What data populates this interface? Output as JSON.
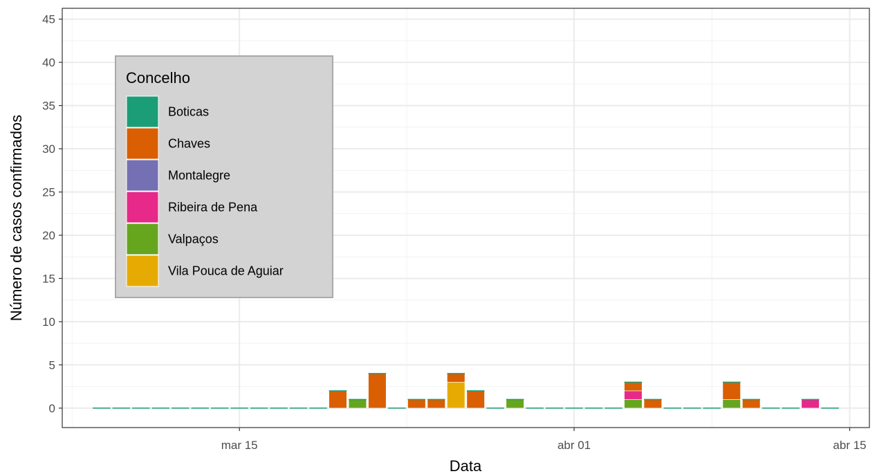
{
  "chart_data": {
    "type": "bar",
    "stacked": true,
    "xlabel": "Data",
    "ylabel": "Número de casos confirmados",
    "x_ticks": [
      {
        "date": "2020-03-15",
        "label": "mar 15"
      },
      {
        "date": "2020-04-01",
        "label": "abr 01"
      },
      {
        "date": "2020-04-15",
        "label": "abr 15"
      }
    ],
    "y_ticks": [
      0,
      5,
      10,
      15,
      20,
      25,
      30,
      35,
      40,
      45
    ],
    "ylim": [
      -2.25,
      46.25
    ],
    "xlim": [
      "2020-03-06",
      "2020-04-16"
    ],
    "grid": true,
    "legend": {
      "title": "Concelho",
      "position": "inside-top-left"
    },
    "series": [
      {
        "name": "Boticas",
        "color": "#1B9E77"
      },
      {
        "name": "Chaves",
        "color": "#D95F02"
      },
      {
        "name": "Montalegre",
        "color": "#7570B3"
      },
      {
        "name": "Ribeira de Pena",
        "color": "#E7298A"
      },
      {
        "name": "Valpaços",
        "color": "#66A61E"
      },
      {
        "name": "Vila Pouca de Aguiar",
        "color": "#E6AB02"
      }
    ],
    "stack_order": [
      "Vila Pouca de Aguiar",
      "Valpaços",
      "Ribeira de Pena",
      "Montalegre",
      "Chaves",
      "Boticas"
    ],
    "dates": [
      "2020-03-08",
      "2020-03-09",
      "2020-03-10",
      "2020-03-11",
      "2020-03-12",
      "2020-03-13",
      "2020-03-14",
      "2020-03-15",
      "2020-03-16",
      "2020-03-17",
      "2020-03-18",
      "2020-03-19",
      "2020-03-20",
      "2020-03-21",
      "2020-03-22",
      "2020-03-23",
      "2020-03-24",
      "2020-03-25",
      "2020-03-26",
      "2020-03-27",
      "2020-03-28",
      "2020-03-29",
      "2020-03-30",
      "2020-03-31",
      "2020-04-01",
      "2020-04-02",
      "2020-04-03",
      "2020-04-04",
      "2020-04-05",
      "2020-04-06",
      "2020-04-07",
      "2020-04-08",
      "2020-04-09",
      "2020-04-10",
      "2020-04-11",
      "2020-04-12",
      "2020-04-13",
      "2020-04-14"
    ],
    "values": {
      "Boticas": [
        0,
        0,
        0,
        0,
        0,
        0,
        0,
        0,
        0,
        0,
        0,
        0,
        0,
        0,
        0,
        0,
        0,
        0,
        0,
        0,
        0,
        0,
        0,
        0,
        0,
        0,
        0,
        0,
        0,
        0,
        0,
        0,
        0,
        0,
        0,
        0,
        0,
        0
      ],
      "Chaves": [
        0,
        0,
        0,
        0,
        0,
        0,
        0,
        0,
        0,
        0,
        0,
        0,
        2,
        0,
        4,
        0,
        1,
        1,
        1,
        2,
        0,
        0,
        0,
        0,
        0,
        0,
        0,
        1,
        1,
        0,
        0,
        0,
        2,
        1,
        0,
        0,
        0,
        0
      ],
      "Montalegre": [
        0,
        0,
        0,
        0,
        0,
        0,
        0,
        0,
        0,
        0,
        0,
        0,
        0,
        0,
        0,
        0,
        0,
        0,
        0,
        0,
        0,
        0,
        0,
        0,
        0,
        0,
        0,
        0,
        0,
        0,
        0,
        0,
        0,
        0,
        0,
        0,
        0,
        0
      ],
      "Ribeira de Pena": [
        0,
        0,
        0,
        0,
        0,
        0,
        0,
        0,
        0,
        0,
        0,
        0,
        0,
        0,
        0,
        0,
        0,
        0,
        0,
        0,
        0,
        0,
        0,
        0,
        0,
        0,
        0,
        1,
        0,
        0,
        0,
        0,
        0,
        0,
        0,
        0,
        1,
        0
      ],
      "Valpaços": [
        0,
        0,
        0,
        0,
        0,
        0,
        0,
        0,
        0,
        0,
        0,
        0,
        0,
        1,
        0,
        0,
        0,
        0,
        0,
        0,
        0,
        1,
        0,
        0,
        0,
        0,
        0,
        1,
        0,
        0,
        0,
        0,
        1,
        0,
        0,
        0,
        0,
        0
      ],
      "Vila Pouca de Aguiar": [
        0,
        0,
        0,
        0,
        0,
        0,
        0,
        0,
        0,
        0,
        0,
        0,
        0,
        0,
        0,
        0,
        0,
        0,
        3,
        0,
        0,
        0,
        0,
        0,
        0,
        0,
        0,
        0,
        0,
        0,
        0,
        0,
        0,
        0,
        0,
        0,
        0,
        0
      ]
    }
  }
}
